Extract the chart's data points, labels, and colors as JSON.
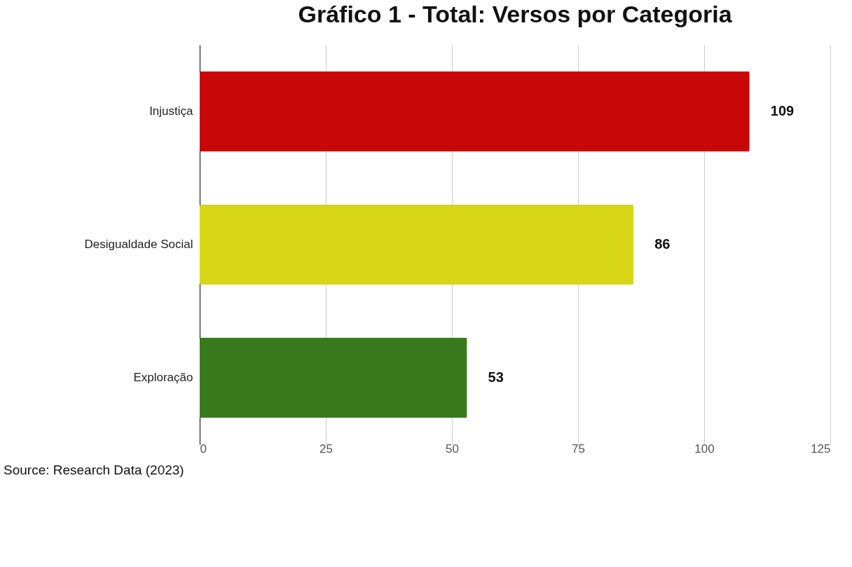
{
  "chart_data": {
    "type": "bar",
    "orientation": "horizontal",
    "title": "Gráfico 1 - Total: Versos por Categoria",
    "categories": [
      "Injustiça",
      "Desigualdade Social",
      "Exploração"
    ],
    "values": [
      109,
      86,
      53
    ],
    "colors": [
      "#c80808",
      "#d6d616",
      "#3a7a1f"
    ],
    "xlim": [
      0,
      125
    ],
    "xticks": [
      0,
      25,
      50,
      75,
      100,
      125
    ],
    "grid": "x",
    "data_labels": true,
    "annotations": [
      "Source: Research Data (2023)"
    ]
  }
}
